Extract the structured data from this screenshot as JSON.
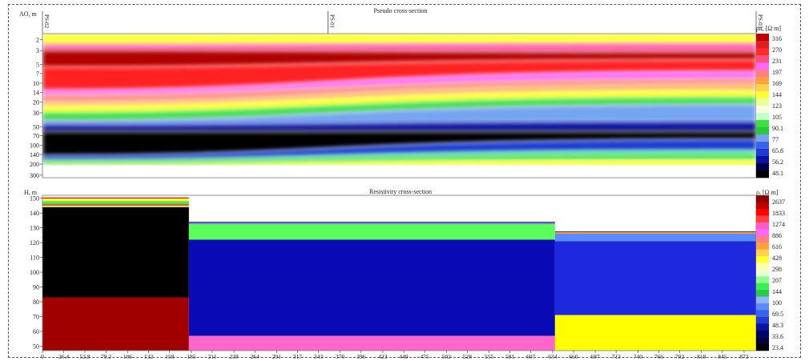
{
  "pseudo": {
    "title": "Pseudo cross-section",
    "y_label": "AO, m",
    "y_ticks": [
      "2",
      "3",
      "5",
      "7",
      "10",
      "14",
      "20",
      "30",
      "50",
      "70",
      "100",
      "140",
      "200",
      "300"
    ],
    "y_log_range": [
      1.6,
      330
    ],
    "station_labels": [
      {
        "text": "PS-02",
        "pos": 0
      },
      {
        "text": "PS-01",
        "pos": 0.4
      },
      {
        "text": "PS-03",
        "pos": 1
      }
    ],
    "legend_title": "ρa, [Ω m]",
    "legend_values": [
      "316",
      "270",
      "231",
      "197",
      "169",
      "144",
      "123",
      "105",
      "90.1",
      "77",
      "65.8",
      "56.2",
      "48.1"
    ],
    "legend_colors": [
      "#c00000",
      "#e02020",
      "#ff2a2a",
      "#ff4d7a",
      "#ff66ff",
      "#ff8080",
      "#ffa040",
      "#ffd24d",
      "#ffff33",
      "#eeff99",
      "#f6ffe0",
      "#c8ffc8",
      "#3ce043",
      "#28c83c",
      "#74a4f0",
      "#3c64e8",
      "#1e3cd2",
      "#0a14a0",
      "#00004a",
      "#000000"
    ]
  },
  "resist": {
    "title": "Resistivity cross-section",
    "y_label": "H, m",
    "y_ticks": [
      "150",
      "140",
      "130",
      "120",
      "110",
      "100",
      "90",
      "80",
      "70",
      "60",
      "50"
    ],
    "legend_title": "ρ, [Ω m]",
    "legend_values": [
      "2637",
      "1833",
      "1274",
      "886",
      "616",
      "428",
      "298",
      "207",
      "144",
      "100",
      "69.5",
      "48.3",
      "33.6",
      "23.4"
    ],
    "legend_colors": [
      "#8b0000",
      "#c00000",
      "#ff0000",
      "#ff4040",
      "#ff5ac8",
      "#ff66ff",
      "#ff8080",
      "#ffa040",
      "#ffd24d",
      "#ffff33",
      "#ffffb0",
      "#eaffd0",
      "#90ff90",
      "#3cf04f",
      "#28c846",
      "#8cb4ff",
      "#5a8cff",
      "#3c64e8",
      "#1e3cd2",
      "#0a14a0",
      "#00006e",
      "#000040",
      "#000000"
    ]
  },
  "x_axis": {
    "ticks": [
      "0",
      "26.4",
      "52.8",
      "79.2",
      "106",
      "132",
      "158",
      "185",
      "211",
      "238",
      "264",
      "291",
      "317",
      "343",
      "370",
      "396",
      "423",
      "449",
      "475",
      "502",
      "528",
      "555",
      "581",
      "607",
      "634",
      "660",
      "687",
      "713",
      "740",
      "766",
      "792",
      "819",
      "845",
      "872"
    ]
  },
  "chart_data": [
    {
      "type": "heatmap",
      "title": "Pseudo cross-section",
      "ylabel": "AO, m",
      "y_scale": "log",
      "y_ticks": [
        2,
        3,
        5,
        7,
        10,
        14,
        20,
        30,
        50,
        70,
        100,
        140,
        200,
        300
      ],
      "stations": [
        "PS-02",
        "PS-01",
        "PS-03"
      ],
      "colorbar_label": "ρa, [Ω m]",
      "colorbar_ticks": [
        316,
        270,
        231,
        197,
        169,
        144,
        123,
        105,
        90.1,
        77,
        65.8,
        56.2,
        48.1
      ],
      "layer_colors_left_profile": [
        {
          "to_ao": 4,
          "color": "#c00000"
        },
        {
          "to_ao": 14,
          "color": "#ff2020"
        },
        {
          "to_ao": 20,
          "color": "#ff8080"
        },
        {
          "to_ao": 30,
          "color": "#ffff33"
        },
        {
          "to_ao": 40,
          "color": "#3ce043"
        },
        {
          "to_ao": 200,
          "color": "#000000"
        }
      ]
    },
    {
      "type": "table",
      "title": "Resistivity cross-section",
      "ylabel": "H, m",
      "ylim": [
        47,
        152
      ],
      "xlim": [
        0,
        887
      ],
      "colorbar_label": "ρ, [Ω m]",
      "colorbar_ticks": [
        2637,
        1833,
        1274,
        886,
        616,
        428,
        298,
        207,
        144,
        100,
        69.5,
        48.3,
        33.6,
        23.4
      ],
      "blocks": [
        {
          "x_from": 0,
          "x_to": 182,
          "layers": [
            {
              "top": 150.5,
              "bottom": 149.8,
              "color": "#ff0000"
            },
            {
              "top": 149.8,
              "bottom": 148,
              "color": "#ffff33"
            },
            {
              "top": 148,
              "bottom": 146,
              "color": "#3cf04f"
            },
            {
              "top": 146,
              "bottom": 145,
              "color": "#ff3030"
            },
            {
              "top": 145,
              "bottom": 144,
              "color": "#ffff66"
            },
            {
              "top": 144,
              "bottom": 83,
              "color": "#000000"
            },
            {
              "top": 83,
              "bottom": 47,
              "color": "#a00000"
            }
          ]
        },
        {
          "x_from": 182,
          "x_to": 637,
          "layers": [
            {
              "top": 134,
              "bottom": 133.5,
              "color": "#000000"
            },
            {
              "top": 133.5,
              "bottom": 132.5,
              "color": "#6b7ff0"
            },
            {
              "top": 132.5,
              "bottom": 122,
              "color": "#5aff5a"
            },
            {
              "top": 122,
              "bottom": 57,
              "color": "#0a0ab4"
            },
            {
              "top": 57,
              "bottom": 47,
              "color": "#ff66cc"
            }
          ]
        },
        {
          "x_from": 637,
          "x_to": 887,
          "layers": [
            {
              "top": 127.5,
              "bottom": 127,
              "color": "#000000"
            },
            {
              "top": 127,
              "bottom": 126,
              "color": "#ff9040"
            },
            {
              "top": 126,
              "bottom": 121,
              "color": "#5a8cff"
            },
            {
              "top": 121,
              "bottom": 71,
              "color": "#1e28dc"
            },
            {
              "top": 71,
              "bottom": 47,
              "color": "#ffff00"
            }
          ]
        }
      ]
    }
  ]
}
